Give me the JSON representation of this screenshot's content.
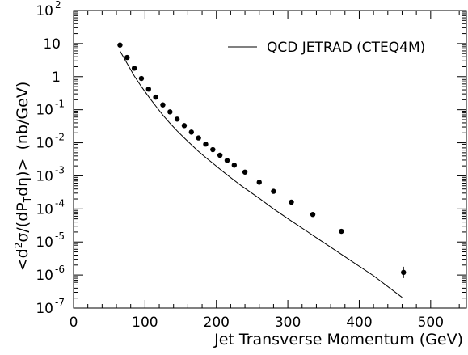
{
  "chart_data": {
    "type": "scatter",
    "xlabel": "Jet Transverse Momentum (GeV)",
    "ylabel": "<d²σ/(dP_T dη)> (nb/GeV)",
    "ylabel_parts": {
      "open": "<d",
      "sup2": "2",
      "sigma": "σ/(dP",
      "sub_t": "T",
      "eta": "dη)>",
      "units": "(nb/GeV)"
    },
    "xlim": [
      0,
      550
    ],
    "ylim": [
      1e-07,
      100
    ],
    "yscale": "log",
    "x_ticks": [
      "0",
      "100",
      "200",
      "300",
      "400",
      "500"
    ],
    "y_ticks": [
      {
        "base": "10",
        "exp": "2"
      },
      {
        "base": "10",
        "exp": ""
      },
      {
        "base": "1",
        "exp": ""
      },
      {
        "base": "10",
        "exp": "-1"
      },
      {
        "base": "10",
        "exp": "-2"
      },
      {
        "base": "10",
        "exp": "-3"
      },
      {
        "base": "10",
        "exp": "-4"
      },
      {
        "base": "10",
        "exp": "-5"
      },
      {
        "base": "10",
        "exp": "-6"
      },
      {
        "base": "10",
        "exp": "-7"
      }
    ],
    "legend": {
      "entry": "QCD JETRAD (CTEQ4M)",
      "placement": "top-right"
    },
    "series": [
      {
        "name": "QCD JETRAD (CTEQ4M)",
        "kind": "line",
        "x": [
          65,
          75,
          85,
          95,
          105,
          115,
          125,
          135,
          145,
          155,
          165,
          175,
          185,
          195,
          205,
          215,
          225,
          235,
          260,
          280,
          305,
          335,
          375,
          420,
          460
        ],
        "y": [
          6.0,
          2.5,
          1.05,
          0.5,
          0.25,
          0.13,
          0.069,
          0.039,
          0.023,
          0.014,
          0.0087,
          0.0055,
          0.0036,
          0.0024,
          0.0016,
          0.00107,
          0.00073,
          0.0005,
          0.00021,
          0.0001,
          4.3e-05,
          1.6e-05,
          4.2e-06,
          9.5e-07,
          2.1e-07
        ]
      },
      {
        "kind": "points",
        "x": [
          65,
          75,
          85,
          95,
          105,
          115,
          125,
          135,
          145,
          155,
          165,
          175,
          185,
          195,
          205,
          215,
          225,
          240,
          260,
          280,
          305,
          335,
          375,
          462
        ],
        "y": [
          9.0,
          3.8,
          1.8,
          0.88,
          0.42,
          0.24,
          0.14,
          0.086,
          0.052,
          0.033,
          0.021,
          0.014,
          0.0091,
          0.0062,
          0.0042,
          0.0029,
          0.0021,
          0.0013,
          0.00064,
          0.00034,
          0.00016,
          6.8e-05,
          2.1e-05,
          1.2e-06
        ]
      }
    ]
  }
}
